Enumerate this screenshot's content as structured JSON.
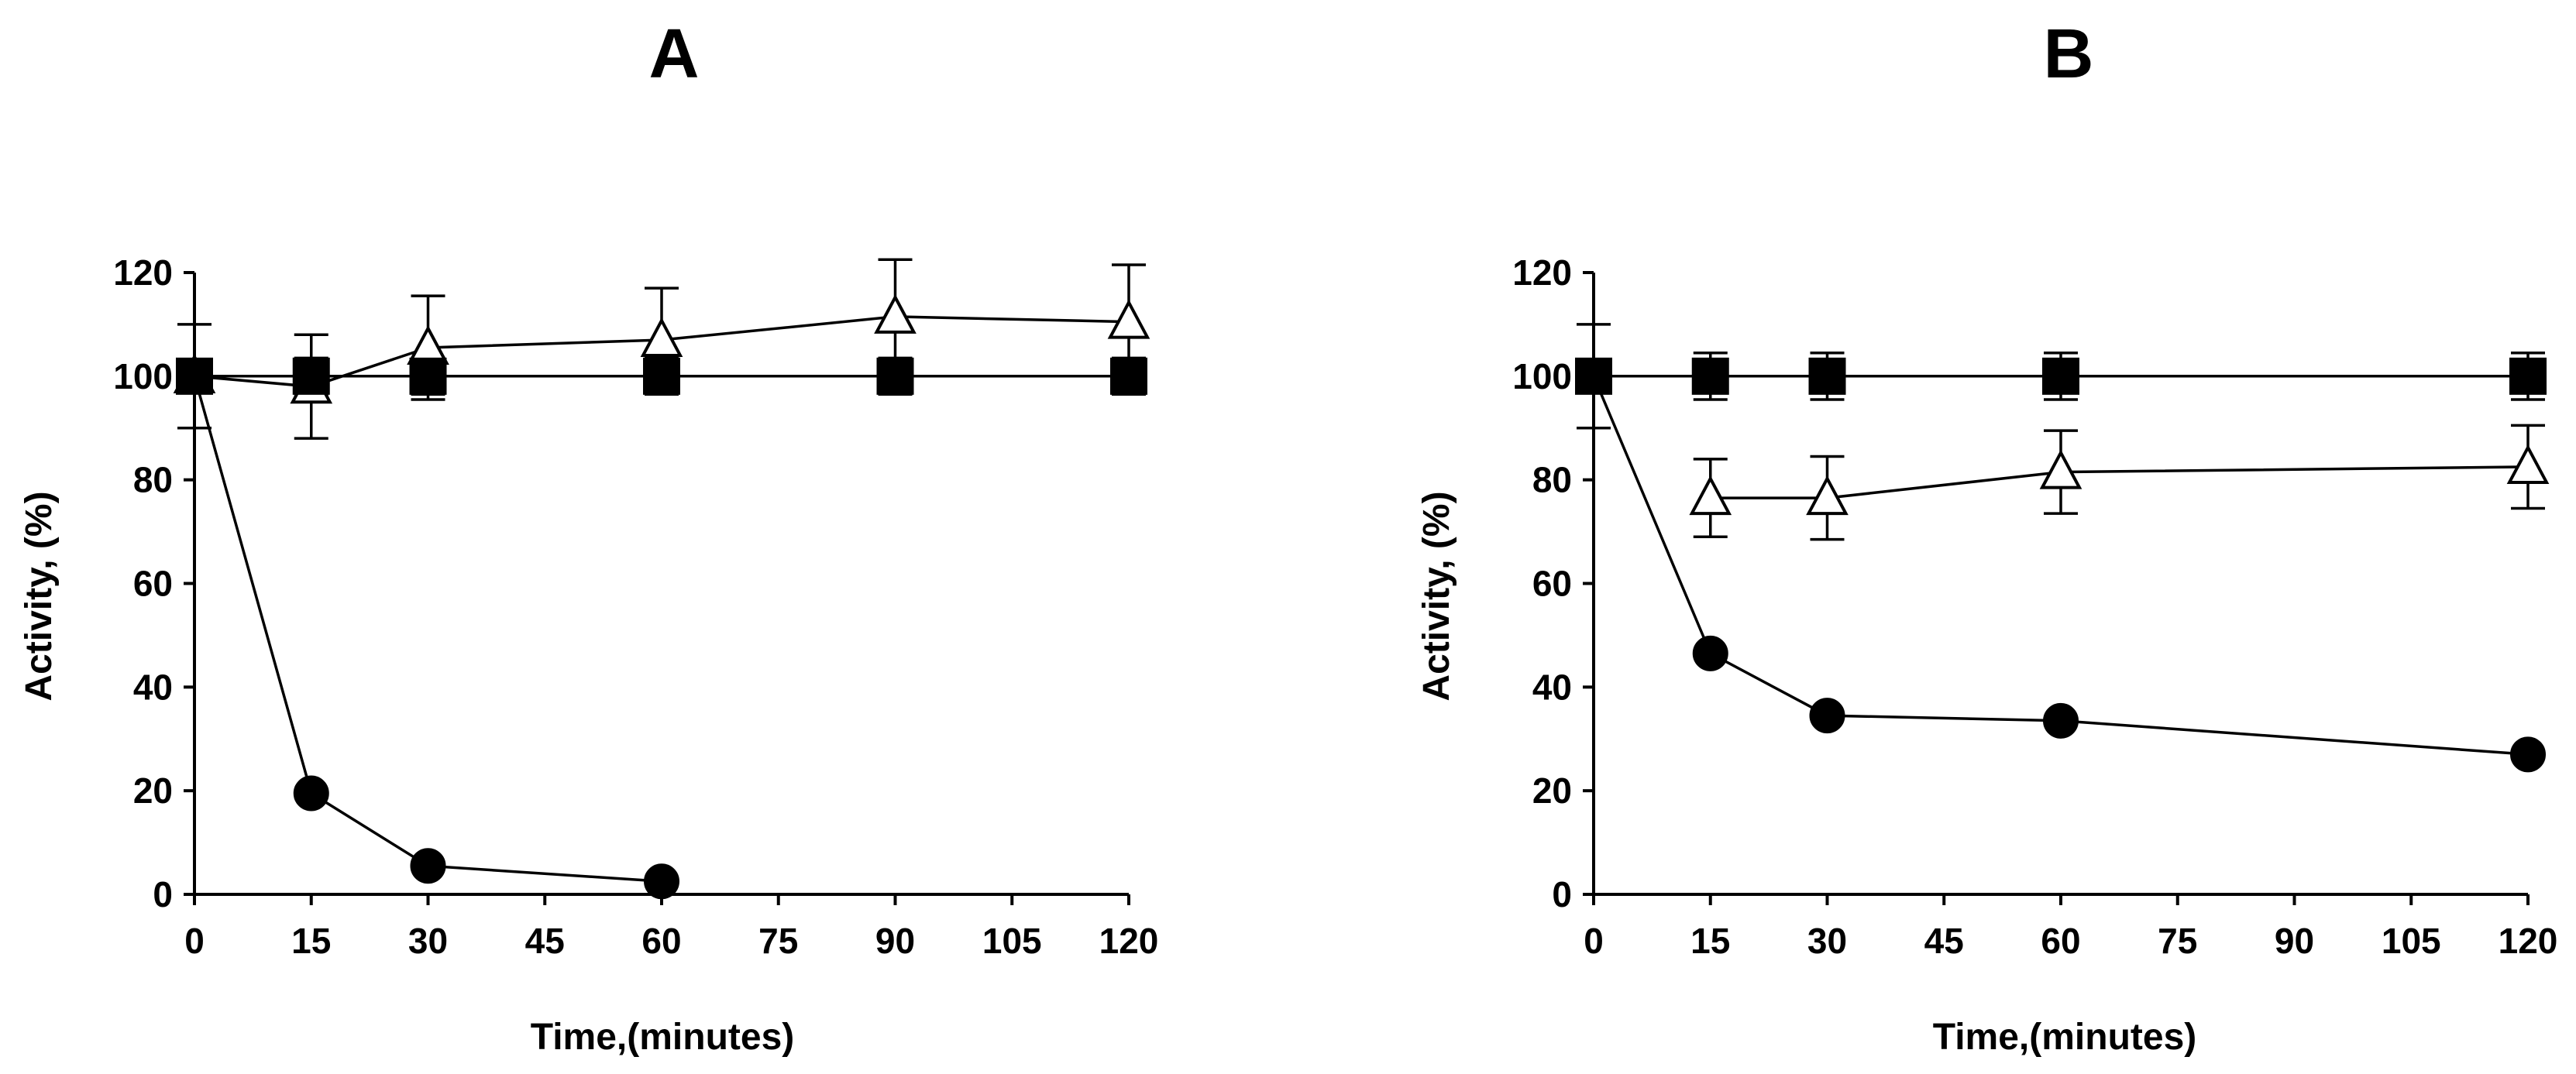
{
  "chart_data": [
    {
      "type": "line",
      "panel": "A",
      "title": "A",
      "xlabel": "Time,(minutes)",
      "ylabel": "Activity, (%)",
      "xlim": [
        0,
        120
      ],
      "ylim": [
        0,
        120
      ],
      "xticks": [
        0,
        15,
        30,
        45,
        60,
        75,
        90,
        105,
        120
      ],
      "yticks": [
        0,
        20,
        40,
        60,
        80,
        100,
        120
      ],
      "grid": false,
      "series": [
        {
          "name": "filled-circle",
          "marker": "circle",
          "x": [
            0,
            15,
            30,
            60
          ],
          "y": [
            100,
            19.5,
            5.5,
            2.5
          ],
          "err": [
            0,
            0,
            0,
            0
          ]
        },
        {
          "name": "filled-square",
          "marker": "square",
          "x": [
            0,
            15,
            30,
            60,
            90,
            120
          ],
          "y": [
            100,
            100,
            100,
            100,
            100,
            100
          ],
          "err": [
            10,
            3.5,
            3.5,
            3.5,
            3.5,
            3.5
          ]
        },
        {
          "name": "open-triangle",
          "marker": "triangle",
          "x": [
            0,
            15,
            30,
            60,
            90,
            120
          ],
          "y": [
            100,
            98,
            105.5,
            107,
            111.5,
            110.5
          ],
          "err": [
            0,
            10,
            10,
            10,
            11,
            11
          ]
        }
      ]
    },
    {
      "type": "line",
      "panel": "B",
      "title": "B",
      "xlabel": "Time,(minutes)",
      "ylabel": "Activity, (%)",
      "xlim": [
        0,
        120
      ],
      "ylim": [
        0,
        120
      ],
      "xticks": [
        0,
        15,
        30,
        45,
        60,
        75,
        90,
        105,
        120
      ],
      "yticks": [
        0,
        20,
        40,
        60,
        80,
        100,
        120
      ],
      "grid": false,
      "series": [
        {
          "name": "filled-circle",
          "marker": "circle",
          "x": [
            0,
            15,
            30,
            60,
            120
          ],
          "y": [
            100,
            46.5,
            34.5,
            33.5,
            27
          ],
          "err": [
            0,
            0,
            0,
            0,
            0
          ]
        },
        {
          "name": "filled-square",
          "marker": "square",
          "x": [
            0,
            15,
            30,
            60,
            120
          ],
          "y": [
            100,
            100,
            100,
            100,
            100
          ],
          "err": [
            10,
            4.5,
            4.5,
            4.5,
            4.5
          ]
        },
        {
          "name": "open-triangle",
          "marker": "triangle",
          "x": [
            15,
            30,
            60,
            120
          ],
          "y": [
            76.5,
            76.5,
            81.5,
            82.5
          ],
          "err": [
            7.5,
            8,
            8,
            8
          ]
        }
      ]
    }
  ]
}
